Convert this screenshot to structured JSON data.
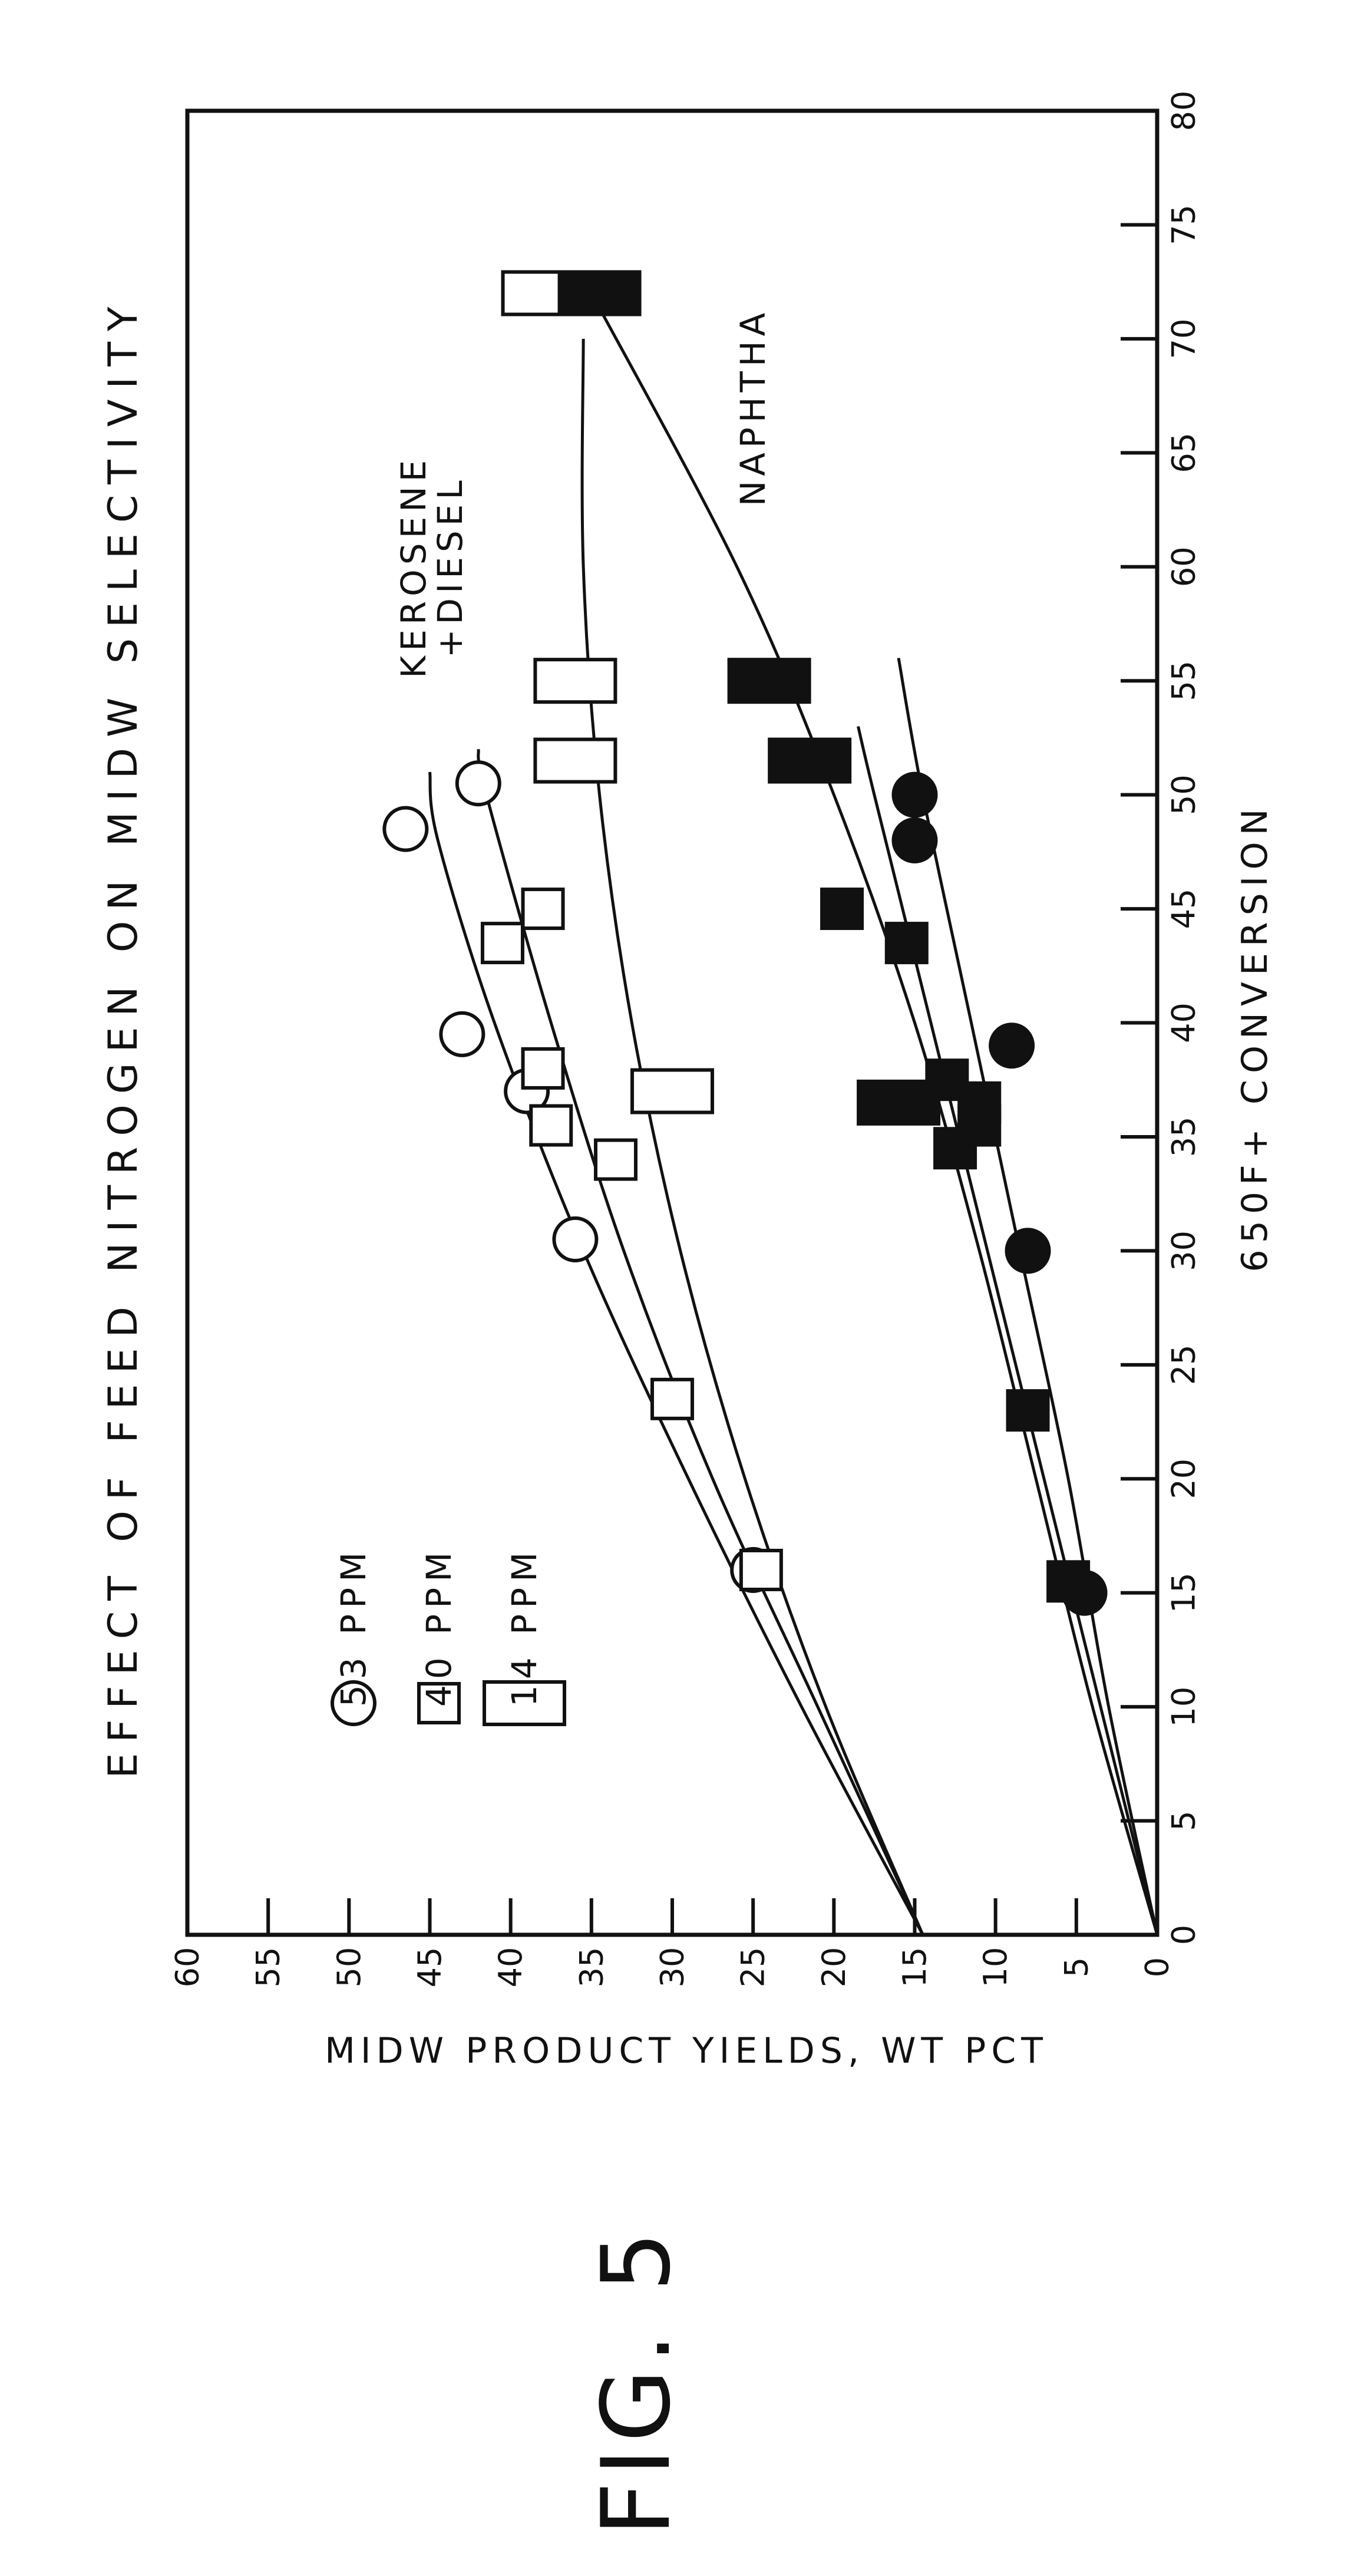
{
  "figure_label": "FIG. 5",
  "chart_data": {
    "type": "scatter",
    "orientation": "rotated 90 degrees counter-clockwise",
    "title": "EFFECT OF FEED NITROGEN ON MIDW SELECTIVITY",
    "xlabel": "650F+ CONVERSION",
    "ylabel": "MIDW PRODUCT YIELDS, WT PCT",
    "xlim": [
      0,
      80
    ],
    "ylim": [
      0,
      60
    ],
    "x_ticks": [
      0,
      5,
      10,
      15,
      20,
      25,
      30,
      35,
      40,
      45,
      50,
      55,
      60,
      65,
      70,
      75,
      80
    ],
    "y_ticks": [
      0,
      5,
      10,
      15,
      20,
      25,
      30,
      35,
      40,
      45,
      50,
      55,
      60
    ],
    "grid": false,
    "legend": {
      "placement": "upper-left",
      "entries": [
        {
          "marker": "circle",
          "label": "53 PPM"
        },
        {
          "marker": "square",
          "label": "40 PPM"
        },
        {
          "marker": "wide-rectangle",
          "label": "14 PPM"
        }
      ]
    },
    "annotations": [
      {
        "text_lines": [
          "KEROSENE",
          "+DIESEL"
        ],
        "x": 60,
        "y": 46
      },
      {
        "text_lines": [
          "NAPHTHA"
        ],
        "x": 67,
        "y": 25
      }
    ],
    "series": [
      {
        "group": "KEROSENE +DIESEL",
        "nitrogen": "53 PPM",
        "marker": "circle",
        "filled": false,
        "points": [
          [
            16,
            25
          ],
          [
            30.5,
            36
          ],
          [
            37,
            39
          ],
          [
            39.5,
            43
          ],
          [
            48.5,
            46.5
          ],
          [
            50.5,
            42
          ]
        ]
      },
      {
        "group": "KEROSENE +DIESEL",
        "nitrogen": "40 PPM",
        "marker": "square",
        "filled": false,
        "points": [
          [
            16,
            24.5
          ],
          [
            23.5,
            30
          ],
          [
            34,
            33.5
          ],
          [
            35.5,
            37.5
          ],
          [
            38,
            38
          ],
          [
            43.5,
            40.5
          ],
          [
            45,
            38
          ]
        ]
      },
      {
        "group": "KEROSENE +DIESEL",
        "nitrogen": "14 PPM",
        "marker": "wide-rectangle",
        "filled": false,
        "points": [
          [
            37,
            30
          ],
          [
            51.5,
            36
          ],
          [
            55,
            36
          ],
          [
            72,
            38
          ]
        ]
      },
      {
        "group": "NAPHTHA",
        "nitrogen": "53 PPM",
        "marker": "circle",
        "filled": true,
        "points": [
          [
            15,
            4.5
          ],
          [
            30,
            8
          ],
          [
            39,
            9
          ],
          [
            48,
            15
          ],
          [
            50,
            15
          ]
        ]
      },
      {
        "group": "NAPHTHA",
        "nitrogen": "40 PPM",
        "marker": "square",
        "filled": true,
        "points": [
          [
            15.5,
            5.5
          ],
          [
            23,
            8
          ],
          [
            34.5,
            12.5
          ],
          [
            35.5,
            11
          ],
          [
            36.5,
            11
          ],
          [
            37.5,
            13
          ],
          [
            43.5,
            15.5
          ],
          [
            45,
            19.5
          ]
        ]
      },
      {
        "group": "NAPHTHA",
        "nitrogen": "14 PPM",
        "marker": "wide-rectangle",
        "filled": true,
        "points": [
          [
            36.5,
            16
          ],
          [
            51.5,
            21.5
          ],
          [
            55,
            24
          ],
          [
            72,
            34.5
          ]
        ]
      }
    ],
    "trend_curves": [
      {
        "group": "KEROSENE +DIESEL",
        "nitrogen": "53 PPM",
        "points": [
          [
            0,
            14.5
          ],
          [
            10,
            22
          ],
          [
            20,
            29
          ],
          [
            30,
            35.5
          ],
          [
            40,
            41
          ],
          [
            48,
            44.5
          ],
          [
            51,
            45
          ]
        ]
      },
      {
        "group": "KEROSENE +DIESEL",
        "nitrogen": "40 PPM",
        "points": [
          [
            0,
            14.5
          ],
          [
            10,
            21
          ],
          [
            20,
            27.5
          ],
          [
            30,
            33
          ],
          [
            40,
            37.5
          ],
          [
            50,
            41.5
          ],
          [
            52,
            42
          ]
        ]
      },
      {
        "group": "KEROSENE +DIESEL",
        "nitrogen": "14 PPM",
        "points": [
          [
            0,
            14.5
          ],
          [
            10,
            20.5
          ],
          [
            20,
            25.5
          ],
          [
            30,
            29.5
          ],
          [
            40,
            32.5
          ],
          [
            50,
            34.5
          ],
          [
            60,
            35.5
          ],
          [
            70,
            35.5
          ]
        ]
      },
      {
        "group": "NAPHTHA",
        "nitrogen": "53 PPM",
        "points": [
          [
            0,
            0
          ],
          [
            10,
            3
          ],
          [
            20,
            5.5
          ],
          [
            30,
            8.5
          ],
          [
            40,
            11.5
          ],
          [
            50,
            14.5
          ],
          [
            56,
            16
          ]
        ]
      },
      {
        "group": "NAPHTHA",
        "nitrogen": "40 PPM",
        "points": [
          [
            0,
            0
          ],
          [
            10,
            3.5
          ],
          [
            20,
            7
          ],
          [
            30,
            10.5
          ],
          [
            40,
            14
          ],
          [
            50,
            17.5
          ],
          [
            53,
            18.5
          ]
        ]
      },
      {
        "group": "NAPHTHA",
        "nitrogen": "14 PPM",
        "points": [
          [
            0,
            0
          ],
          [
            10,
            4
          ],
          [
            20,
            7.5
          ],
          [
            30,
            11
          ],
          [
            40,
            15
          ],
          [
            50,
            20
          ],
          [
            60,
            26
          ],
          [
            72,
            35
          ]
        ]
      }
    ]
  }
}
